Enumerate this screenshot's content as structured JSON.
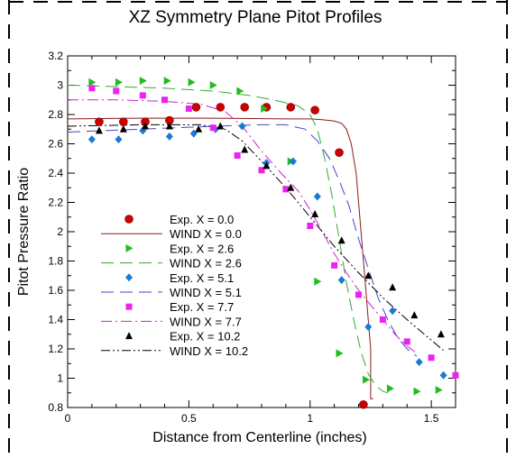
{
  "chart_data": {
    "type": "scatter",
    "title": "XZ Symmetry Plane Pitot Profiles",
    "xlabel": "Distance from Centerline  (inches)",
    "ylabel": "Pitot Pressure Ratio",
    "xlim": [
      0,
      1.6
    ],
    "ylim": [
      0.8,
      3.2
    ],
    "xticks": [
      {
        "value": 0,
        "label": "0"
      },
      {
        "value": 0.5,
        "label": "0.5"
      },
      {
        "value": 1.0,
        "label": "1"
      },
      {
        "value": 1.5,
        "label": "1.5"
      }
    ],
    "yticks": [
      {
        "value": 0.8,
        "label": "0.8"
      },
      {
        "value": 1.0,
        "label": "1"
      },
      {
        "value": 1.2,
        "label": "1.2"
      },
      {
        "value": 1.4,
        "label": "1.4"
      },
      {
        "value": 1.6,
        "label": "1.6"
      },
      {
        "value": 1.8,
        "label": "1.8"
      },
      {
        "value": 2.0,
        "label": "2"
      },
      {
        "value": 2.2,
        "label": "2.2"
      },
      {
        "value": 2.4,
        "label": "2.4"
      },
      {
        "value": 2.6,
        "label": "2.6"
      },
      {
        "value": 2.8,
        "label": "2.8"
      },
      {
        "value": 3.0,
        "label": "3"
      },
      {
        "value": 3.2,
        "label": "3.2"
      }
    ],
    "grid": false,
    "legend_position": "lower-left",
    "series": [
      {
        "name": "Exp.  X = 0.0",
        "kind": "markers",
        "marker": "circle",
        "color": "#cc0000",
        "x": [
          0.13,
          0.23,
          0.32,
          0.42,
          0.53,
          0.63,
          0.73,
          0.82,
          0.92,
          1.02,
          1.12,
          1.22
        ],
        "y": [
          2.75,
          2.75,
          2.75,
          2.76,
          2.85,
          2.85,
          2.85,
          2.85,
          2.85,
          2.83,
          2.54,
          0.82
        ]
      },
      {
        "name": "WIND  X = 0.0",
        "kind": "line",
        "dash": "solid",
        "color": "#8b1a1a",
        "x": [
          0.0,
          0.3,
          0.6,
          0.9,
          1.0,
          1.05,
          1.1,
          1.13,
          1.15,
          1.17,
          1.19,
          1.2,
          1.21,
          1.22,
          1.23,
          1.24,
          1.25,
          1.25,
          1.26
        ],
        "y": [
          2.77,
          2.775,
          2.775,
          2.77,
          2.77,
          2.765,
          2.755,
          2.74,
          2.7,
          2.6,
          2.4,
          2.2,
          2.0,
          1.8,
          1.6,
          1.4,
          1.2,
          0.86,
          0.86
        ]
      },
      {
        "name": "Exp.  X = 2.6",
        "kind": "markers",
        "marker": "triangle-right",
        "color": "#22bb22",
        "x": [
          0.1,
          0.21,
          0.31,
          0.41,
          0.51,
          0.6,
          0.71,
          0.81,
          0.92,
          1.03,
          1.12,
          1.23,
          1.33,
          1.44,
          1.53
        ],
        "y": [
          3.02,
          3.02,
          3.03,
          3.03,
          3.02,
          3.0,
          2.96,
          2.84,
          2.48,
          1.66,
          1.17,
          0.99,
          0.93,
          0.91,
          0.92
        ]
      },
      {
        "name": "WIND  X = 2.6",
        "kind": "line",
        "dash": "dashed",
        "color": "#33aa33",
        "x": [
          0.0,
          0.2,
          0.4,
          0.6,
          0.75,
          0.85,
          0.95,
          1.0,
          1.03,
          1.06,
          1.09,
          1.12,
          1.15,
          1.18,
          1.21,
          1.24,
          1.27,
          1.3,
          1.32
        ],
        "y": [
          3.0,
          2.99,
          2.98,
          2.96,
          2.93,
          2.9,
          2.86,
          2.8,
          2.7,
          2.5,
          2.25,
          1.95,
          1.65,
          1.4,
          1.18,
          1.03,
          0.95,
          0.91,
          0.9
        ]
      },
      {
        "name": "Exp.  X = 5.1",
        "kind": "markers",
        "marker": "diamond",
        "color": "#1a7ad4",
        "x": [
          0.1,
          0.21,
          0.31,
          0.42,
          0.52,
          0.61,
          0.72,
          0.82,
          0.93,
          1.03,
          1.13,
          1.24,
          1.34,
          1.45,
          1.55
        ],
        "y": [
          2.63,
          2.63,
          2.69,
          2.65,
          2.67,
          2.7,
          2.72,
          2.47,
          2.48,
          2.24,
          1.67,
          1.35,
          1.46,
          1.11,
          1.02
        ]
      },
      {
        "name": "WIND  X = 5.1",
        "kind": "line",
        "dash": "dashed",
        "color": "#4444cc",
        "x": [
          0.0,
          0.3,
          0.6,
          0.8,
          0.9,
          0.98,
          1.03,
          1.08,
          1.12,
          1.16,
          1.2,
          1.24,
          1.28,
          1.32,
          1.36,
          1.4,
          1.44
        ],
        "y": [
          2.68,
          2.7,
          2.72,
          2.73,
          2.73,
          2.7,
          2.62,
          2.5,
          2.35,
          2.18,
          1.95,
          1.75,
          1.55,
          1.4,
          1.28,
          1.2,
          1.15
        ]
      },
      {
        "name": "Exp.  X = 7.7",
        "kind": "markers",
        "marker": "square",
        "color": "#ee22ee",
        "x": [
          0.1,
          0.2,
          0.31,
          0.4,
          0.5,
          0.6,
          0.7,
          0.8,
          0.9,
          1.0,
          1.1,
          1.2,
          1.3,
          1.4,
          1.5,
          1.6
        ],
        "y": [
          2.98,
          2.96,
          2.93,
          2.9,
          2.84,
          2.71,
          2.52,
          2.42,
          2.29,
          2.04,
          1.77,
          1.57,
          1.4,
          1.25,
          1.14,
          1.02
        ]
      },
      {
        "name": "WIND  X = 7.7",
        "kind": "line",
        "dash": "dashdot",
        "color": "#cc22cc",
        "x": [
          0.0,
          0.2,
          0.4,
          0.55,
          0.65,
          0.72,
          0.8,
          0.88,
          0.95,
          1.0,
          1.05,
          1.1,
          1.15,
          1.2,
          1.25,
          1.3,
          1.35,
          1.4,
          1.44
        ],
        "y": [
          2.9,
          2.9,
          2.89,
          2.87,
          2.82,
          2.72,
          2.55,
          2.4,
          2.28,
          2.15,
          2.0,
          1.85,
          1.72,
          1.6,
          1.5,
          1.4,
          1.3,
          1.22,
          1.17
        ]
      },
      {
        "name": "Exp.  X = 10.2",
        "kind": "markers",
        "marker": "triangle-up",
        "color": "#000000",
        "x": [
          0.13,
          0.23,
          0.32,
          0.42,
          0.54,
          0.63,
          0.73,
          0.82,
          0.92,
          1.02,
          1.13,
          1.24,
          1.34,
          1.43,
          1.54
        ],
        "y": [
          2.69,
          2.7,
          2.72,
          2.72,
          2.7,
          2.72,
          2.56,
          2.45,
          2.3,
          2.12,
          1.94,
          1.7,
          1.62,
          1.43,
          1.3
        ]
      },
      {
        "name": "WIND  X = 10.2",
        "kind": "line",
        "dash": "dashdotdot",
        "color": "#000000",
        "x": [
          0.0,
          0.3,
          0.55,
          0.65,
          0.72,
          0.8,
          0.9,
          1.0,
          1.1,
          1.2,
          1.3,
          1.4,
          1.5,
          1.55
        ],
        "y": [
          2.72,
          2.73,
          2.73,
          2.7,
          2.62,
          2.48,
          2.3,
          2.1,
          1.9,
          1.72,
          1.55,
          1.4,
          1.26,
          1.19
        ]
      }
    ]
  }
}
